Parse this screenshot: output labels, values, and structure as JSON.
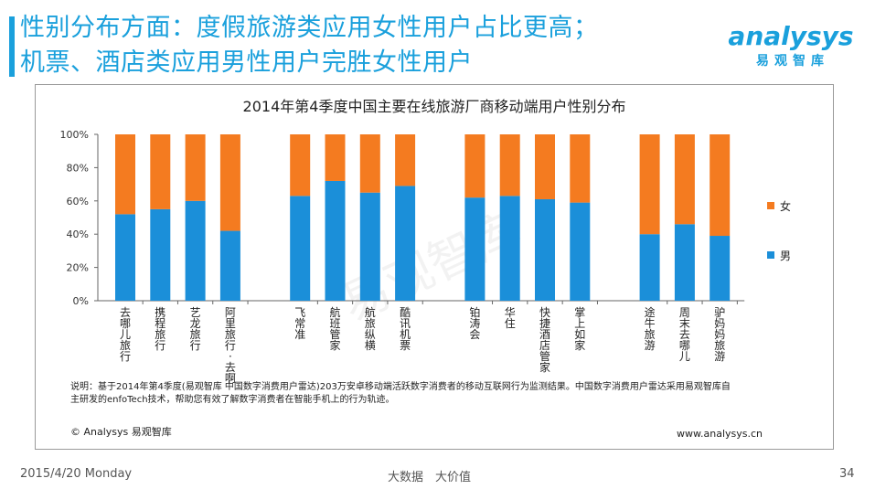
{
  "header": {
    "title_line1": "性别分布方面：度假旅游类应用女性用户占比更高；",
    "title_line2": "机票、酒店类应用男性用户完胜女性用户"
  },
  "logo": {
    "word": "analysys",
    "cn": "易观智库"
  },
  "colors": {
    "accent": "#1aa0dc",
    "female": "#f47b20",
    "male": "#1b8fd9"
  },
  "chart_data": {
    "type": "bar",
    "stacked": true,
    "percent": true,
    "title": "2014年第4季度中国主要在线旅游厂商移动端用户性别分布",
    "categories": [
      "去哪儿旅行",
      "携程旅行",
      "艺龙旅行",
      "阿里旅行·去啊",
      "飞常准",
      "航班管家",
      "航旅纵横",
      "酷讯机票",
      "铂涛会",
      "华住",
      "快捷酒店管家",
      "掌上如家",
      "途牛旅游",
      "周末去哪儿",
      "驴妈妈旅游"
    ],
    "groups": [
      4,
      4,
      4,
      3
    ],
    "series": [
      {
        "name": "男",
        "color": "#1b8fd9",
        "values": [
          52,
          55,
          60,
          42,
          63,
          72,
          65,
          69,
          62,
          63,
          61,
          59,
          40,
          46,
          39
        ]
      },
      {
        "name": "女",
        "color": "#f47b20",
        "values": [
          48,
          45,
          40,
          58,
          37,
          28,
          35,
          31,
          38,
          37,
          39,
          41,
          60,
          54,
          61
        ]
      }
    ],
    "yticks": [
      "0%",
      "20%",
      "40%",
      "60%",
      "80%",
      "100%"
    ],
    "ylim": [
      0,
      100
    ],
    "legend_position": "right",
    "note": "说明：基于2014年第4季度(易观智库 中国数字消费用户雷达)203万安卓移动端活跃数字消费者的移动互联网行为监测结果。中国数字消费用户雷达采用易观智库自主研发的enfoTech技术，帮助您有效了解数字消费者在智能手机上的行为轨迹。",
    "copyright": "© Analysys 易观智库",
    "website": "www.analysys.cn",
    "watermark": "易观智库"
  },
  "footer": {
    "date": "2015/4/20 Monday",
    "center": "大数据　大价值",
    "page": "34"
  }
}
